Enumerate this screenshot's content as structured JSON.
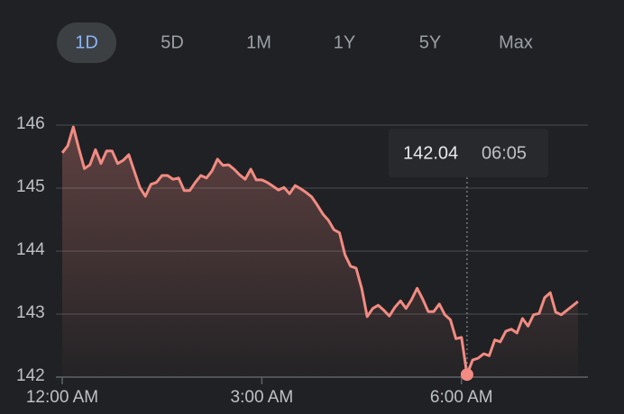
{
  "chart_data": {
    "type": "line",
    "ranges": [
      "1D",
      "5D",
      "1M",
      "1Y",
      "5Y",
      "Max"
    ],
    "x": [
      0,
      5,
      10,
      15,
      20,
      25,
      30,
      35,
      40,
      45,
      50,
      55,
      60,
      65,
      70,
      75,
      80,
      85,
      90,
      95,
      100,
      105,
      110,
      115,
      120,
      125,
      130,
      135,
      140,
      145,
      150,
      155,
      160,
      165,
      170,
      175,
      180,
      185,
      190,
      195,
      200,
      205,
      210,
      215,
      220,
      225,
      230,
      235,
      240,
      245,
      250,
      255,
      260,
      265,
      270,
      275,
      280,
      285,
      290,
      295,
      300,
      305,
      310,
      315,
      320,
      325,
      330,
      335,
      340,
      345,
      350,
      355,
      360,
      365,
      370,
      375,
      380,
      385,
      390,
      395,
      400,
      405,
      410,
      415,
      420,
      425,
      430,
      435,
      440,
      445,
      450,
      455,
      460,
      465
    ],
    "values": [
      145.56,
      145.67,
      145.97,
      145.63,
      145.31,
      145.37,
      145.61,
      145.39,
      145.59,
      145.59,
      145.39,
      145.44,
      145.53,
      145.27,
      145.01,
      144.87,
      145.06,
      145.09,
      145.2,
      145.2,
      145.14,
      145.16,
      144.96,
      144.96,
      145.09,
      145.2,
      145.16,
      145.27,
      145.46,
      145.36,
      145.37,
      145.3,
      145.21,
      145.14,
      145.3,
      145.13,
      145.13,
      145.09,
      145.03,
      144.97,
      145.01,
      144.91,
      145.04,
      144.99,
      144.93,
      144.86,
      144.73,
      144.59,
      144.49,
      144.34,
      144.29,
      143.94,
      143.76,
      143.73,
      143.41,
      142.96,
      143.09,
      143.14,
      143.06,
      142.97,
      143.11,
      143.21,
      143.09,
      143.23,
      143.41,
      143.24,
      143.04,
      143.04,
      143.16,
      142.99,
      142.91,
      142.61,
      142.63,
      142.04,
      142.27,
      142.3,
      142.37,
      142.34,
      142.59,
      142.56,
      142.73,
      142.76,
      142.7,
      142.93,
      142.81,
      142.99,
      143.01,
      143.26,
      143.34,
      143.03,
      142.99,
      143.06,
      143.13,
      143.2
    ],
    "color": "#f28b82",
    "xlim": [
      0,
      474
    ],
    "xticks": [
      {
        "value": 0,
        "label": "12:00 AM"
      },
      {
        "value": 180,
        "label": "3:00 AM"
      },
      {
        "value": 360,
        "label": "6:00 AM"
      }
    ],
    "ylim": [
      142,
      146
    ],
    "yticks": [
      142,
      143,
      144,
      145,
      146
    ],
    "grid": true,
    "tooltip": {
      "value": "142.04",
      "time": "06:05"
    }
  }
}
